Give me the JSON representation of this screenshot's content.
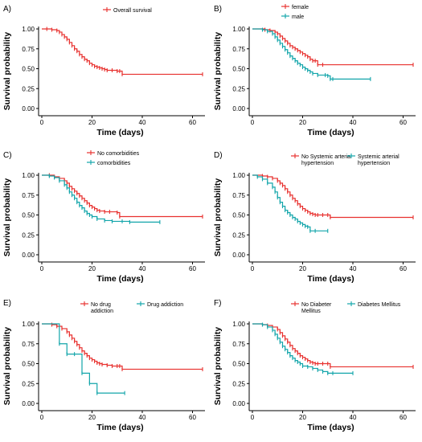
{
  "colors": {
    "red": "#e8312f",
    "teal": "#12a5aa",
    "axis": "#000000"
  },
  "chart_data": [
    {
      "type": "line",
      "letter": "A)",
      "xlabel": "Time (days)",
      "ylabel": "Survival probability",
      "xlim": [
        0,
        64
      ],
      "ylim": [
        0,
        1.0
      ],
      "xticks": [
        "0",
        "20",
        "40",
        "60"
      ],
      "yticks": [
        "0.00",
        "0.25",
        "0.50",
        "0.75",
        "1.00"
      ],
      "legend_placement": "top-center",
      "grid": false,
      "series": [
        {
          "name": "Overall survival",
          "color": "red",
          "x": [
            0,
            2,
            4,
            6,
            7,
            8,
            9,
            10,
            11,
            12,
            13,
            14,
            15,
            16,
            17,
            18,
            19,
            20,
            21,
            22,
            23,
            24,
            25,
            26,
            28,
            30,
            31,
            32,
            64
          ],
          "y": [
            1.0,
            1.0,
            0.99,
            0.98,
            0.96,
            0.93,
            0.9,
            0.87,
            0.83,
            0.79,
            0.75,
            0.72,
            0.68,
            0.65,
            0.62,
            0.6,
            0.57,
            0.55,
            0.53,
            0.52,
            0.51,
            0.5,
            0.49,
            0.48,
            0.48,
            0.47,
            0.47,
            0.43,
            0.43
          ]
        }
      ]
    },
    {
      "type": "line",
      "letter": "B)",
      "xlabel": "Time (days)",
      "ylabel": "Survival probability",
      "xlim": [
        0,
        64
      ],
      "ylim": [
        0,
        1.0
      ],
      "xticks": [
        "0",
        "20",
        "40",
        "60"
      ],
      "yticks": [
        "0.00",
        "0.25",
        "0.50",
        "0.75",
        "1.00"
      ],
      "legend_placement": "top-center",
      "grid": false,
      "series": [
        {
          "name": "female",
          "color": "red",
          "x": [
            0,
            5,
            7,
            9,
            10,
            11,
            12,
            13,
            14,
            15,
            16,
            17,
            18,
            19,
            20,
            21,
            22,
            23,
            24,
            25,
            26,
            28,
            64
          ],
          "y": [
            1.0,
            0.99,
            0.98,
            0.96,
            0.94,
            0.91,
            0.88,
            0.85,
            0.82,
            0.79,
            0.77,
            0.75,
            0.73,
            0.71,
            0.69,
            0.67,
            0.65,
            0.62,
            0.6,
            0.6,
            0.55,
            0.55,
            0.55
          ]
        },
        {
          "name": "male",
          "color": "teal",
          "x": [
            0,
            4,
            6,
            8,
            9,
            10,
            11,
            12,
            13,
            14,
            15,
            16,
            17,
            18,
            19,
            20,
            21,
            22,
            23,
            24,
            26,
            29,
            30,
            31,
            32,
            47
          ],
          "y": [
            1.0,
            0.99,
            0.97,
            0.94,
            0.9,
            0.86,
            0.82,
            0.78,
            0.74,
            0.7,
            0.66,
            0.63,
            0.6,
            0.57,
            0.55,
            0.52,
            0.5,
            0.48,
            0.46,
            0.44,
            0.42,
            0.42,
            0.41,
            0.37,
            0.37,
            0.37
          ]
        }
      ]
    },
    {
      "type": "line",
      "letter": "C)",
      "xlabel": "Time (days)",
      "ylabel": "Survival probability",
      "xlim": [
        0,
        64
      ],
      "ylim": [
        0,
        1.0
      ],
      "xticks": [
        "0",
        "20",
        "40",
        "60"
      ],
      "yticks": [
        "0.00",
        "0.25",
        "0.50",
        "0.75",
        "1.00"
      ],
      "legend_placement": "top-center",
      "grid": false,
      "series": [
        {
          "name": "No comorbidities",
          "color": "red",
          "x": [
            0,
            3,
            5,
            7,
            9,
            10,
            11,
            12,
            13,
            14,
            15,
            16,
            17,
            18,
            19,
            20,
            21,
            22,
            23,
            25,
            27,
            30,
            31,
            64
          ],
          "y": [
            1.0,
            1.0,
            0.98,
            0.96,
            0.93,
            0.9,
            0.86,
            0.83,
            0.8,
            0.77,
            0.74,
            0.71,
            0.68,
            0.65,
            0.62,
            0.6,
            0.58,
            0.56,
            0.55,
            0.54,
            0.54,
            0.53,
            0.48,
            0.48
          ]
        },
        {
          "name": "comorbidities",
          "color": "teal",
          "x": [
            0,
            3,
            5,
            7,
            9,
            10,
            11,
            12,
            13,
            14,
            15,
            16,
            17,
            18,
            19,
            20,
            22,
            25,
            28,
            32,
            35,
            47
          ],
          "y": [
            1.0,
            0.99,
            0.97,
            0.93,
            0.88,
            0.84,
            0.79,
            0.75,
            0.71,
            0.66,
            0.62,
            0.59,
            0.55,
            0.52,
            0.5,
            0.48,
            0.45,
            0.43,
            0.42,
            0.42,
            0.41,
            0.41
          ]
        }
      ]
    },
    {
      "type": "line",
      "letter": "D)",
      "xlabel": "Time (days)",
      "ylabel": "Survival probability",
      "xlim": [
        0,
        64
      ],
      "ylim": [
        0,
        1.0
      ],
      "xticks": [
        "0",
        "20",
        "40",
        "60"
      ],
      "yticks": [
        "0.00",
        "0.25",
        "0.50",
        "0.75",
        "1.00"
      ],
      "legend_placement": "top-center",
      "grid": false,
      "series": [
        {
          "name": "No Systemic arterial hypertension",
          "color": "red",
          "x": [
            0,
            4,
            6,
            8,
            10,
            11,
            12,
            13,
            14,
            15,
            16,
            17,
            18,
            19,
            20,
            21,
            22,
            23,
            24,
            25,
            26,
            28,
            30,
            31,
            64
          ],
          "y": [
            1.0,
            0.99,
            0.98,
            0.96,
            0.93,
            0.9,
            0.87,
            0.83,
            0.79,
            0.75,
            0.71,
            0.68,
            0.64,
            0.61,
            0.58,
            0.56,
            0.54,
            0.52,
            0.51,
            0.5,
            0.5,
            0.5,
            0.5,
            0.47,
            0.47
          ]
        },
        {
          "name": "Systemic arterial hypertension",
          "color": "teal",
          "x": [
            0,
            2,
            4,
            6,
            8,
            9,
            10,
            11,
            12,
            13,
            14,
            15,
            16,
            17,
            18,
            19,
            20,
            21,
            22,
            23,
            25,
            30
          ],
          "y": [
            1.0,
            0.98,
            0.95,
            0.9,
            0.85,
            0.79,
            0.72,
            0.66,
            0.61,
            0.56,
            0.53,
            0.5,
            0.47,
            0.45,
            0.42,
            0.4,
            0.38,
            0.36,
            0.35,
            0.3,
            0.3,
            0.3
          ]
        }
      ]
    },
    {
      "type": "line",
      "letter": "E)",
      "xlabel": "Time (days)",
      "ylabel": "Survival probability",
      "xlim": [
        0,
        64
      ],
      "ylim": [
        0,
        1.0
      ],
      "xticks": [
        "0",
        "20",
        "40",
        "60"
      ],
      "yticks": [
        "0.00",
        "0.25",
        "0.50",
        "0.75",
        "1.00"
      ],
      "legend_placement": "top-center",
      "grid": false,
      "series": [
        {
          "name": "No drug addiction",
          "color": "red",
          "x": [
            0,
            4,
            6,
            8,
            10,
            11,
            12,
            13,
            14,
            15,
            16,
            17,
            18,
            19,
            20,
            21,
            22,
            23,
            24,
            26,
            28,
            30,
            31,
            32,
            64
          ],
          "y": [
            1.0,
            0.99,
            0.97,
            0.94,
            0.9,
            0.86,
            0.82,
            0.78,
            0.74,
            0.7,
            0.66,
            0.63,
            0.6,
            0.57,
            0.55,
            0.53,
            0.51,
            0.5,
            0.49,
            0.48,
            0.47,
            0.47,
            0.47,
            0.43,
            0.43
          ]
        },
        {
          "name": "Drug addiction",
          "color": "teal",
          "x": [
            0,
            7,
            10,
            13,
            16,
            19,
            22,
            33
          ],
          "y": [
            1.0,
            0.75,
            0.62,
            0.62,
            0.38,
            0.25,
            0.13,
            0.13
          ]
        }
      ]
    },
    {
      "type": "line",
      "letter": "F)",
      "xlabel": "Time (days)",
      "ylabel": "Survival probability",
      "xlim": [
        0,
        64
      ],
      "ylim": [
        0,
        1.0
      ],
      "xticks": [
        "0",
        "20",
        "40",
        "60"
      ],
      "yticks": [
        "0.00",
        "0.25",
        "0.50",
        "0.75",
        "1.00"
      ],
      "legend_placement": "top-center",
      "grid": false,
      "series": [
        {
          "name": "No Diabeter Mellitus",
          "color": "red",
          "x": [
            0,
            4,
            6,
            8,
            10,
            11,
            12,
            13,
            14,
            15,
            16,
            17,
            18,
            19,
            20,
            21,
            22,
            23,
            24,
            25,
            26,
            28,
            30,
            31,
            64
          ],
          "y": [
            1.0,
            0.99,
            0.98,
            0.96,
            0.93,
            0.89,
            0.85,
            0.81,
            0.77,
            0.73,
            0.69,
            0.66,
            0.63,
            0.6,
            0.58,
            0.56,
            0.54,
            0.52,
            0.51,
            0.5,
            0.5,
            0.5,
            0.5,
            0.46,
            0.46
          ]
        },
        {
          "name": "Diabetes Mellitus",
          "color": "teal",
          "x": [
            0,
            4,
            6,
            8,
            9,
            10,
            11,
            12,
            13,
            14,
            15,
            16,
            17,
            18,
            19,
            20,
            22,
            24,
            26,
            28,
            30,
            32,
            40
          ],
          "y": [
            1.0,
            0.99,
            0.96,
            0.92,
            0.87,
            0.82,
            0.77,
            0.72,
            0.68,
            0.64,
            0.6,
            0.57,
            0.54,
            0.52,
            0.5,
            0.47,
            0.46,
            0.44,
            0.42,
            0.4,
            0.38,
            0.38,
            0.38
          ]
        }
      ]
    }
  ]
}
